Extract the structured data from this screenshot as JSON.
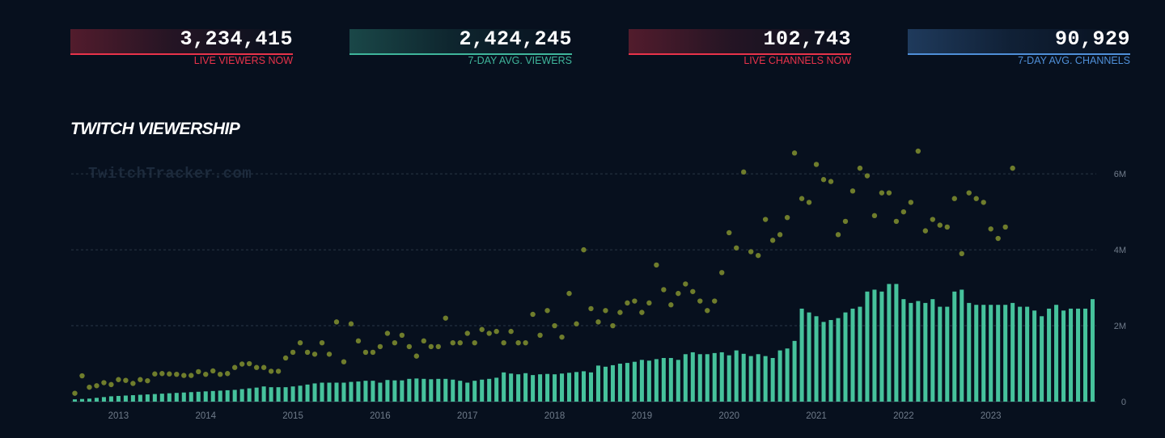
{
  "stats": [
    {
      "value": "3,234,415",
      "label": "LIVE VIEWERS NOW",
      "color": "#e8334a"
    },
    {
      "value": "2,424,245",
      "label": "7-DAY AVG. VIEWERS",
      "color": "#3fb59b"
    },
    {
      "value": "102,743",
      "label": "LIVE CHANNELS NOW",
      "color": "#e8334a"
    },
    {
      "value": "90,929",
      "label": "7-DAY AVG. CHANNELS",
      "color": "#4f8fd8"
    }
  ],
  "chart_data": {
    "type": "bar",
    "title": "TWITCH VIEWERSHIP",
    "watermark": "TwitchTracker.com",
    "x_start": "2012-07",
    "x_tick_labels": [
      "2013",
      "2014",
      "2015",
      "2016",
      "2017",
      "2018",
      "2019",
      "2020",
      "2021",
      "2022",
      "2023"
    ],
    "y_tick_labels": [
      "0",
      "2M",
      "4M",
      "6M"
    ],
    "ylim": [
      0,
      6600000
    ],
    "grid": true,
    "colors": {
      "bars": "#46c29c",
      "points": "#6f7d2c"
    },
    "series": [
      {
        "type": "bar",
        "values": [
          60000,
          70000,
          80000,
          100000,
          120000,
          140000,
          150000,
          160000,
          170000,
          180000,
          190000,
          200000,
          210000,
          220000,
          230000,
          240000,
          250000,
          260000,
          270000,
          280000,
          290000,
          300000,
          310000,
          330000,
          350000,
          370000,
          400000,
          380000,
          380000,
          380000,
          400000,
          420000,
          450000,
          480000,
          500000,
          500000,
          500000,
          500000,
          520000,
          530000,
          550000,
          550000,
          500000,
          570000,
          560000,
          560000,
          600000,
          610000,
          600000,
          590000,
          600000,
          600000,
          580000,
          550000,
          500000,
          550000,
          580000,
          600000,
          630000,
          770000,
          740000,
          720000,
          750000,
          700000,
          720000,
          730000,
          720000,
          740000,
          760000,
          780000,
          800000,
          770000,
          950000,
          920000,
          960000,
          1000000,
          1020000,
          1050000,
          1100000,
          1080000,
          1120000,
          1150000,
          1150000,
          1100000,
          1250000,
          1300000,
          1250000,
          1250000,
          1280000,
          1300000,
          1220000,
          1350000,
          1260000,
          1200000,
          1250000,
          1200000,
          1150000,
          1350000,
          1400000,
          1600000,
          2450000,
          2350000,
          2250000,
          2100000,
          2150000,
          2200000,
          2350000,
          2450000,
          2500000,
          2900000,
          2950000,
          2900000,
          3100000,
          3100000,
          2700000,
          2600000,
          2650000,
          2600000,
          2700000,
          2500000,
          2500000,
          2900000,
          2950000,
          2600000,
          2550000,
          2550000,
          2550000,
          2550000,
          2550000,
          2600000,
          2500000,
          2500000,
          2400000,
          2250000,
          2450000,
          2550000,
          2400000,
          2450000,
          2450000,
          2450000,
          2700000
        ]
      },
      {
        "type": "scatter",
        "values": [
          220000,
          680000,
          380000,
          420000,
          500000,
          450000,
          580000,
          560000,
          480000,
          580000,
          550000,
          730000,
          740000,
          730000,
          720000,
          690000,
          690000,
          790000,
          720000,
          810000,
          720000,
          740000,
          900000,
          990000,
          1000000,
          900000,
          900000,
          800000,
          800000,
          1150000,
          1300000,
          1550000,
          1300000,
          1250000,
          1550000,
          1250000,
          2100000,
          1050000,
          2050000,
          1600000,
          1300000,
          1300000,
          1450000,
          1800000,
          1550000,
          1750000,
          1450000,
          1200000,
          1600000,
          1450000,
          1450000,
          2200000,
          1550000,
          1550000,
          1800000,
          1550000,
          1900000,
          1800000,
          1850000,
          1550000,
          1850000,
          1550000,
          1550000,
          2300000,
          1750000,
          2400000,
          2000000,
          1700000,
          2850000,
          2050000,
          4000000,
          2450000,
          2100000,
          2400000,
          2000000,
          2350000,
          2600000,
          2650000,
          2350000,
          2600000,
          3600000,
          2950000,
          2550000,
          2850000,
          3100000,
          2900000,
          2650000,
          2400000,
          2650000,
          3400000,
          4450000,
          4050000,
          6050000,
          3950000,
          3850000,
          4800000,
          4250000,
          4400000,
          4850000,
          6550000,
          5350000,
          5250000,
          6250000,
          5850000,
          5800000,
          4400000,
          4750000,
          5550000,
          6150000,
          5950000,
          4900000,
          5500000,
          5500000,
          4750000,
          5000000,
          5250000,
          6600000,
          4500000,
          4800000,
          4650000,
          4600000,
          5350000,
          3900000,
          5500000,
          5350000,
          5250000,
          4550000,
          4300000,
          4600000,
          6150000
        ]
      }
    ]
  }
}
